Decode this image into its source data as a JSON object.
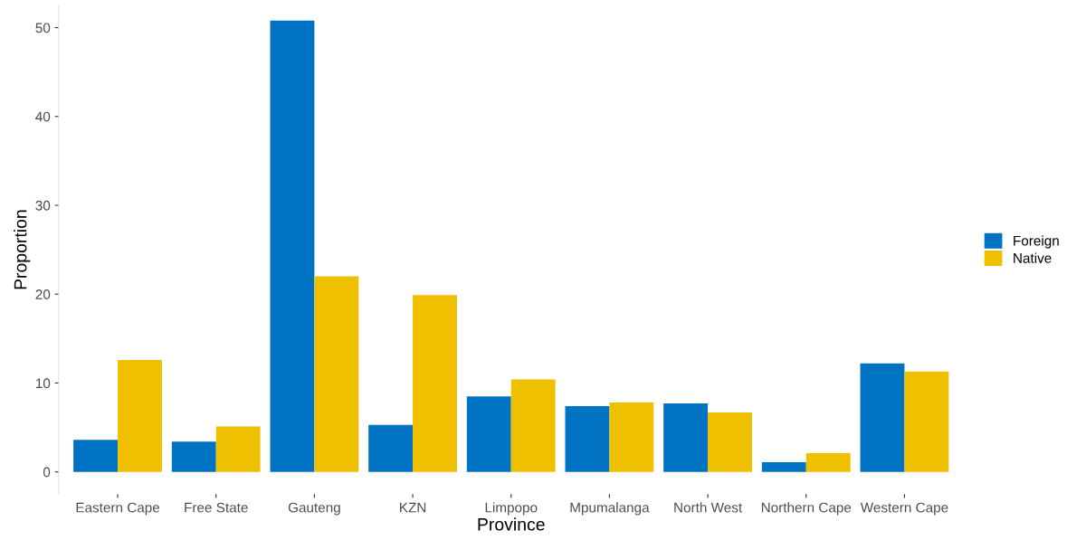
{
  "chart_data": {
    "type": "bar",
    "xlabel": "Province",
    "ylabel": "Proportion",
    "categories": [
      "Eastern Cape",
      "Free State",
      "Gauteng",
      "KZN",
      "Limpopo",
      "Mpumalanga",
      "North West",
      "Northern Cape",
      "Western Cape"
    ],
    "series": [
      {
        "name": "Foreign",
        "color": "#0073c2",
        "values": [
          3.6,
          3.4,
          50.8,
          5.3,
          8.5,
          7.4,
          7.7,
          1.1,
          12.2
        ]
      },
      {
        "name": "Native",
        "color": "#efc000",
        "values": [
          12.6,
          5.1,
          22.0,
          19.9,
          10.4,
          7.8,
          6.7,
          2.1,
          11.3
        ]
      }
    ],
    "ylim": [
      -2.5,
      52.5
    ],
    "yticks": [
      0,
      10,
      20,
      30,
      40,
      50
    ],
    "grid": false,
    "legend": "right"
  }
}
